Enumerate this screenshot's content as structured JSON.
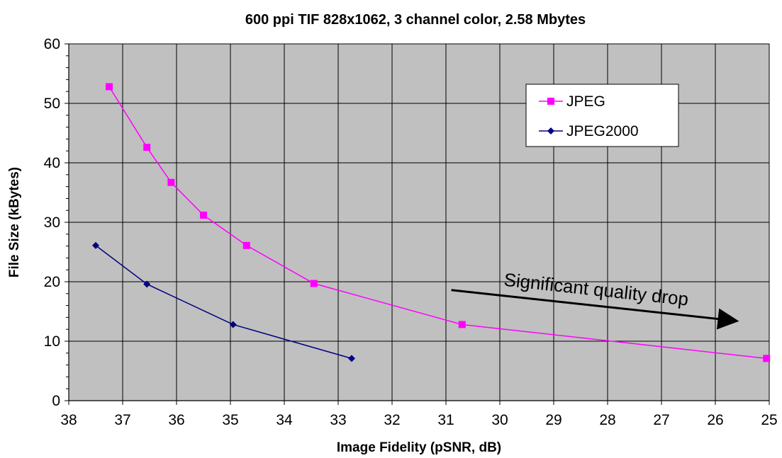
{
  "chart_data": {
    "type": "line",
    "title": "600 ppi TIF 828x1062, 3 channel color, 2.58 Mbytes",
    "xlabel": "Image Fidelity (pSNR, dB)",
    "ylabel": "File Size (kBytes)",
    "xlim": [
      38,
      25
    ],
    "ylim": [
      0,
      60
    ],
    "x_reversed": true,
    "x_ticks": [
      "38",
      "37",
      "36",
      "35",
      "34",
      "33",
      "32",
      "31",
      "30",
      "29",
      "28",
      "27",
      "26",
      "25"
    ],
    "y_ticks": [
      "0",
      "10",
      "20",
      "30",
      "40",
      "50",
      "60"
    ],
    "grid": "both",
    "plot_background": "#c0c0c0",
    "legend_position": "top-right",
    "series": [
      {
        "name": "JPEG",
        "color": "#ff00ff",
        "marker": "square",
        "x": [
          37.25,
          36.55,
          36.1,
          35.5,
          34.7,
          33.45,
          30.7,
          25.05
        ],
        "y": [
          52.8,
          42.6,
          36.7,
          31.2,
          26.1,
          19.7,
          12.8,
          7.1
        ]
      },
      {
        "name": "JPEG2000",
        "color": "#000080",
        "marker": "diamond",
        "x": [
          37.5,
          36.55,
          34.95,
          32.75
        ],
        "y": [
          26.1,
          19.6,
          12.8,
          7.1
        ]
      }
    ],
    "annotations": [
      {
        "text": "Significant quality drop",
        "arrow_from": [
          30.9,
          18.6
        ],
        "arrow_to": [
          25.6,
          13.4
        ]
      }
    ]
  }
}
